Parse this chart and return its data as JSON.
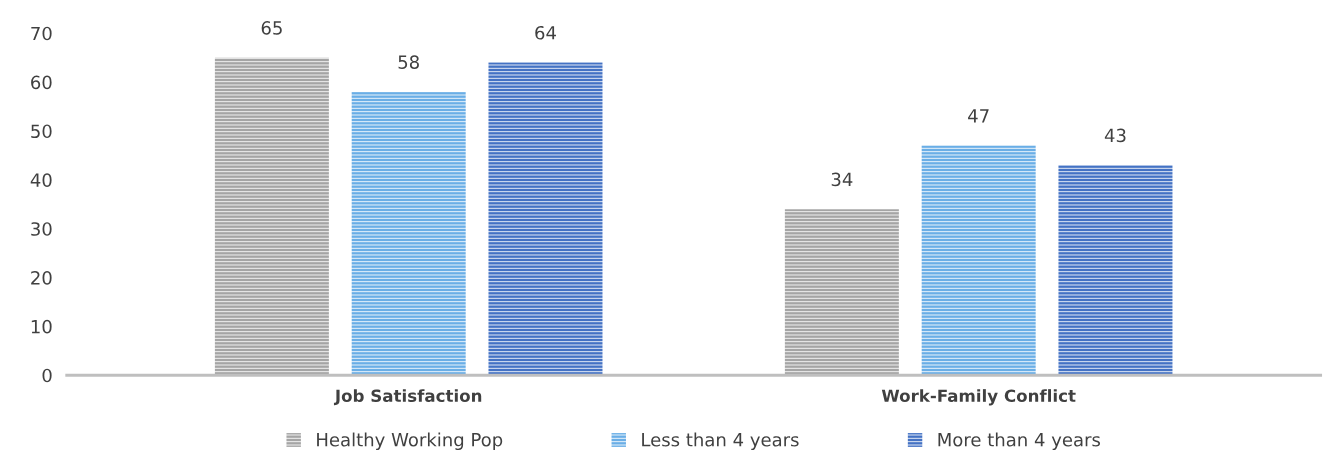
{
  "chart_data": {
    "type": "bar",
    "categories": [
      "Job Satisfaction",
      "Work-Family Conflict"
    ],
    "series": [
      {
        "name": "Healthy Working Pop",
        "color": "#a5a5a5",
        "values": [
          65,
          34
        ]
      },
      {
        "name": "Less than 4 years",
        "color": "#6aaee6",
        "values": [
          58,
          47
        ]
      },
      {
        "name": "More than 4 years",
        "color": "#4472c4",
        "values": [
          64,
          43
        ]
      }
    ],
    "ylim": [
      0,
      70
    ],
    "yticks": [
      0,
      10,
      20,
      30,
      40,
      50,
      60,
      70
    ],
    "data_labels": true,
    "grid": false,
    "legend": "bottom"
  }
}
